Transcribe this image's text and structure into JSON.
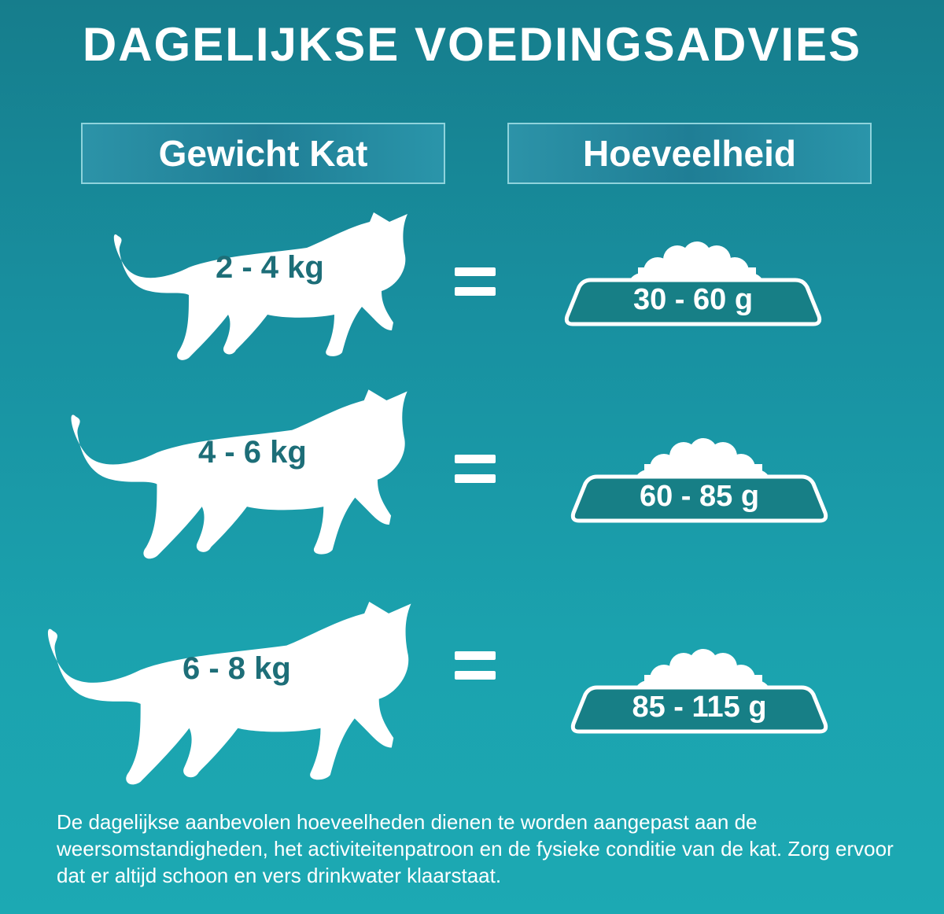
{
  "title": "DAGELIJKSE VOEDINGSADVIES",
  "headers": {
    "weight": "Gewicht Kat",
    "amount": "Hoeveelheid"
  },
  "rows": [
    {
      "weight": "2 - 4 kg",
      "amount": "30 - 60 g"
    },
    {
      "weight": "4 - 6 kg",
      "amount": "60 - 85 g"
    },
    {
      "weight": "6 - 8 kg",
      "amount": "85 - 115 g"
    }
  ],
  "note": "De dagelijkse aanbevolen hoeveelheden dienen te worden aangepast aan de weersomstandigheden, het activiteitenpatroon en de fysieke conditie van de kat. Zorg ervoor dat er altijd schoon en vers drinkwater klaarstaat.",
  "colors": {
    "background": "#1890a0",
    "bowl": "#177f86",
    "weight_text": "#1d6e78"
  },
  "icons": [
    "cat-silhouette-icon",
    "food-bowl-icon",
    "equals-icon"
  ]
}
